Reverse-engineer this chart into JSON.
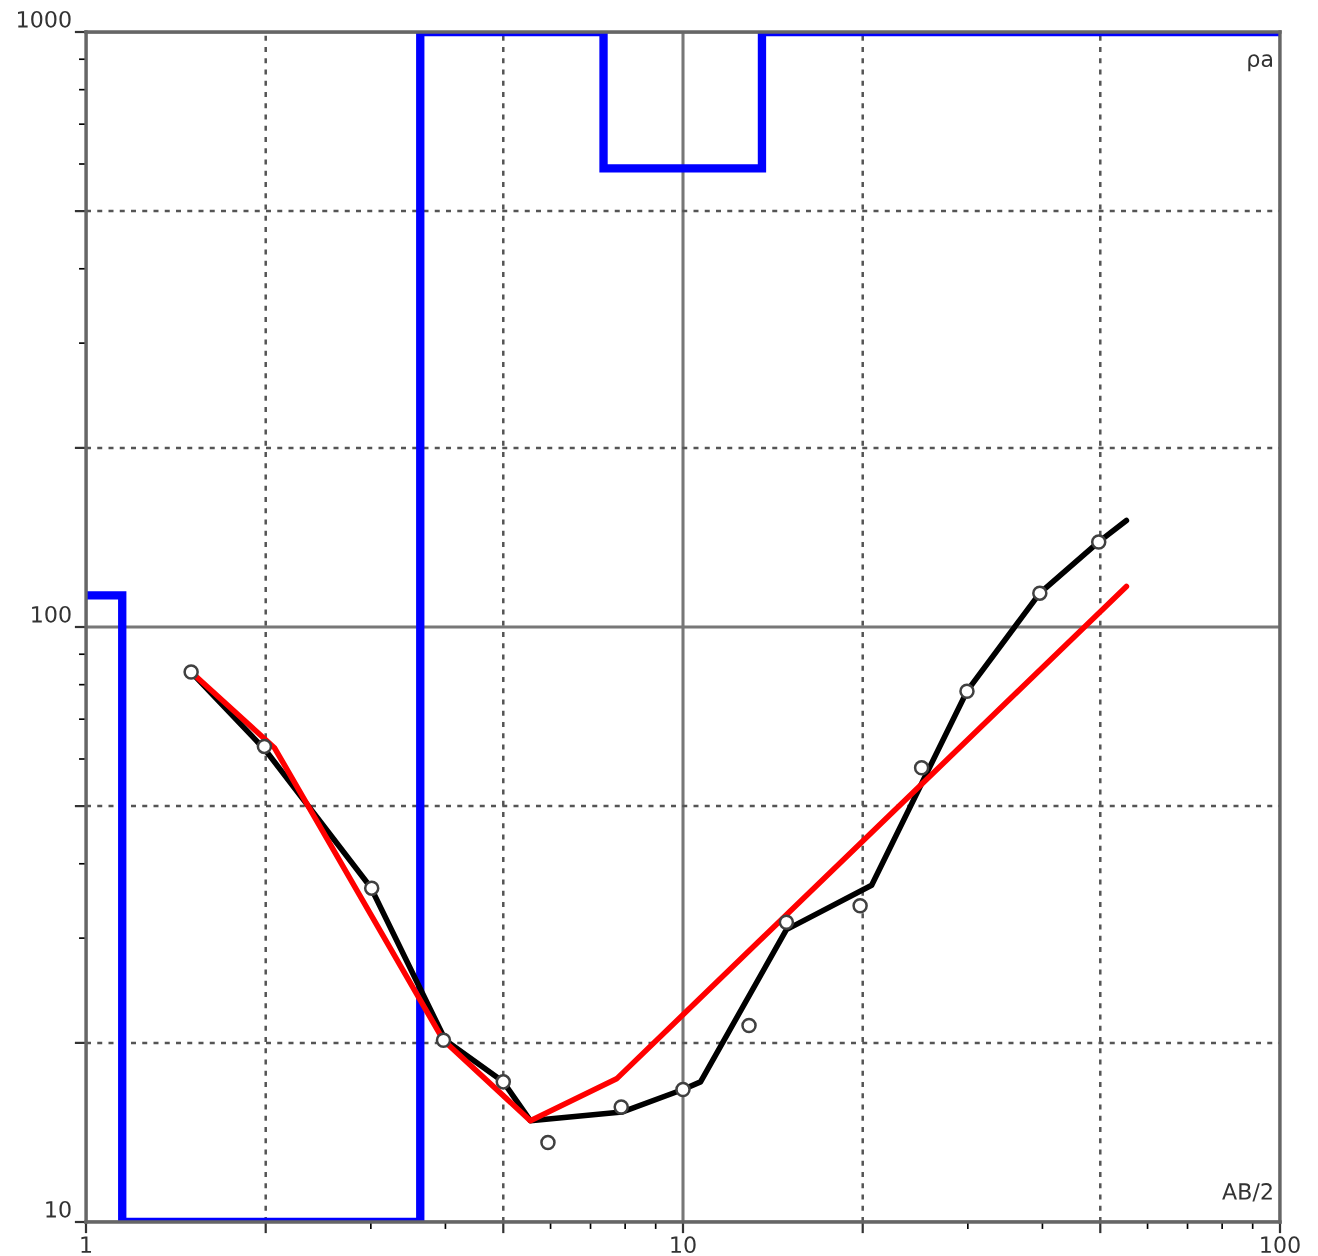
{
  "chart_data": {
    "type": "line",
    "xlabel": "AB/2",
    "ylabel": "ρa",
    "log": "xy",
    "xlim": [
      1,
      100
    ],
    "ylim": [
      10,
      1000
    ],
    "xticks": [
      1,
      {
        "value": 2,
        "label": null
      },
      {
        "value": 5,
        "label": null
      },
      10,
      {
        "value": 20,
        "label": null
      },
      {
        "value": 50,
        "label": null
      },
      100
    ],
    "yticks": [
      10,
      {
        "value": 20,
        "label": null
      },
      {
        "value": 50,
        "label": null
      },
      100,
      {
        "value": 200,
        "label": null
      },
      {
        "value": 500,
        "label": null
      },
      1000
    ],
    "grid": true,
    "series": [
      {
        "type": "step",
        "color": "#0000ff",
        "x": [
          1,
          1.15,
          3.63,
          7.36,
          13.56,
          100
        ],
        "values": [
          113,
          10,
          1000,
          590,
          1000,
          1000
        ]
      },
      {
        "color": "#000000",
        "x": [
          1.5,
          2.0,
          3.0,
          4.0,
          5.0,
          5.55,
          7.9,
          10,
          10.7,
          14.9,
          20.7,
          29.9,
          39.6,
          49.7,
          55.3
        ],
        "values": [
          84,
          62,
          36.5,
          20.2,
          17.2,
          14.8,
          15.3,
          16.7,
          17.2,
          31,
          36.8,
          78,
          114,
          139,
          151
        ]
      },
      {
        "color": "#ff0000",
        "x": [
          1.5,
          2.07,
          3.97,
          5.55,
          7.74,
          55.3
        ],
        "values": [
          84,
          62.6,
          20.2,
          14.8,
          17.4,
          117
        ]
      },
      {
        "type": "scatter",
        "color": "#404040",
        "marker": "circle",
        "x": [
          1.5,
          1.99,
          3.01,
          3.97,
          5.0,
          5.94,
          7.88,
          10,
          12.9,
          14.9,
          19.8,
          25.1,
          29.9,
          39.6,
          49.7
        ],
        "values": [
          84,
          63,
          36.4,
          20.2,
          17.2,
          13.6,
          15.6,
          16.7,
          21.4,
          31.9,
          34.0,
          58,
          78,
          114,
          139
        ]
      }
    ]
  }
}
